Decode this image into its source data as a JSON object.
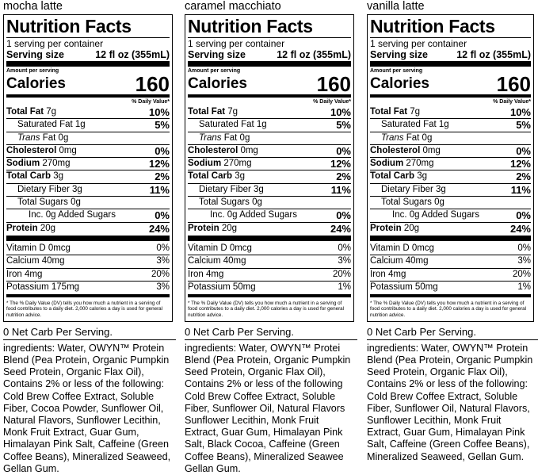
{
  "labels": [
    {
      "flavor": "mocha latte",
      "title": "Nutrition Facts",
      "servings": "1 serving per container",
      "serving_size_label": "Serving size",
      "serving_size_value": "12 fl oz (355mL)",
      "amount_per_serving": "Amount per serving",
      "calories_label": "Calories",
      "calories_value": "160",
      "dv_header": "% Daily Value*",
      "nutrients": [
        {
          "name": "Total Fat",
          "amount": "7g",
          "pct": "10%"
        },
        {
          "name": "Saturated Fat",
          "amount": "1g",
          "pct": "5%"
        },
        {
          "name": "Trans",
          "amount": "Fat 0g",
          "pct": ""
        },
        {
          "name": "Cholesterol",
          "amount": "0mg",
          "pct": "0%"
        },
        {
          "name": "Sodium",
          "amount": "270mg",
          "pct": "12%"
        },
        {
          "name": "Total Carb",
          "amount": "3g",
          "pct": "2%"
        },
        {
          "name": "Dietary Fiber",
          "amount": "3g",
          "pct": "11%"
        },
        {
          "name": "Total Sugars",
          "amount": "0g",
          "pct": ""
        },
        {
          "name": "Inc. 0g Added Sugars",
          "amount": "",
          "pct": "0%"
        },
        {
          "name": "Protein",
          "amount": "20g",
          "pct": "24%"
        }
      ],
      "vitamins": [
        {
          "name": "Vitamin D",
          "amount": "0mcg",
          "pct": "0%"
        },
        {
          "name": "Calcium",
          "amount": "40mg",
          "pct": "3%"
        },
        {
          "name": "Iron",
          "amount": "4mg",
          "pct": "20%"
        },
        {
          "name": "Potassium",
          "amount": "175mg",
          "pct": "3%"
        }
      ],
      "footnote": "* The % Daily Value (DV) tells you how much a nutrient in a serving of food contributes to a daily diet. 2,000 calories a day is used for general nutrition advice.",
      "net_carb": "0 Net Carb Per Serving.",
      "ingredients": "ingredients: Water, OWYN™ Protein\nBlend (Pea Protein, Organic Pumpkin\nSeed Protein, Organic Flax Oil),\nContains 2% or less of the following:\nCold Brew Coffee Extract, Soluble\nFiber, Cocoa Powder, Sunflower Oil,\nNatural Flavors, Sunflower Lecithin,\nMonk Fruit Extract, Guar Gum,\nHimalayan Pink Salt, Caffeine (Green\nCoffee Beans), Mineralized Seaweed,\nGellan Gum."
    },
    {
      "flavor": "caramel macchiato",
      "title": "Nutrition Facts",
      "servings": "1 serving per container",
      "serving_size_label": "Serving size",
      "serving_size_value": "12 fl oz (355mL)",
      "amount_per_serving": "Amount per serving",
      "calories_label": "Calories",
      "calories_value": "160",
      "dv_header": "% Daily Value*",
      "nutrients": [
        {
          "name": "Total Fat",
          "amount": "7g",
          "pct": "10%"
        },
        {
          "name": "Saturated Fat",
          "amount": "1g",
          "pct": "5%"
        },
        {
          "name": "Trans",
          "amount": "Fat 0g",
          "pct": ""
        },
        {
          "name": "Cholesterol",
          "amount": "0mg",
          "pct": "0%"
        },
        {
          "name": "Sodium",
          "amount": "270mg",
          "pct": "12%"
        },
        {
          "name": "Total Carb",
          "amount": "3g",
          "pct": "2%"
        },
        {
          "name": "Dietary Fiber",
          "amount": "3g",
          "pct": "11%"
        },
        {
          "name": "Total Sugars",
          "amount": "0g",
          "pct": ""
        },
        {
          "name": "Inc. 0g Added Sugars",
          "amount": "",
          "pct": "0%"
        },
        {
          "name": "Protein",
          "amount": "20g",
          "pct": "24%"
        }
      ],
      "vitamins": [
        {
          "name": "Vitamin D",
          "amount": "0mcg",
          "pct": "0%"
        },
        {
          "name": "Calcium",
          "amount": "40mg",
          "pct": "3%"
        },
        {
          "name": "Iron",
          "amount": "4mg",
          "pct": "20%"
        },
        {
          "name": "Potassium",
          "amount": "50mg",
          "pct": "1%"
        }
      ],
      "footnote": "* The % Daily Value (DV) tells you how much a nutrient in a serving of food contributes to a daily diet. 2,000 calories a day is used for general nutrition advice.",
      "net_carb": "0 Net Carb Per Serving.",
      "ingredients": "ingredients: Water, OWYN™ Protei\nBlend (Pea Protein, Organic Pumpkin\nSeed Protein, Organic Flax Oil),\nContains 2% or less of the following\nCold Brew Coffee Extract, Soluble\nFiber, Sunflower Oil, Natural Flavors\nSunflower Lecithin, Monk Fruit\nExtract, Guar Gum, Himalayan Pink\nSalt, Black Cocoa, Caffeine (Green\nCoffee Beans), Mineralized Seawee\nGellan Gum."
    },
    {
      "flavor": "vanilla latte",
      "title": "Nutrition Facts",
      "servings": "1 serving per container",
      "serving_size_label": "Serving size",
      "serving_size_value": "12 fl oz (355mL)",
      "amount_per_serving": "Amount per serving",
      "calories_label": "Calories",
      "calories_value": "160",
      "dv_header": "% Daily Value*",
      "nutrients": [
        {
          "name": "Total Fat",
          "amount": "7g",
          "pct": "10%"
        },
        {
          "name": "Saturated Fat",
          "amount": "1g",
          "pct": "5%"
        },
        {
          "name": "Trans",
          "amount": "Fat 0g",
          "pct": ""
        },
        {
          "name": "Cholesterol",
          "amount": "0mg",
          "pct": "0%"
        },
        {
          "name": "Sodium",
          "amount": "270mg",
          "pct": "12%"
        },
        {
          "name": "Total Carb",
          "amount": "3g",
          "pct": "2%"
        },
        {
          "name": "Dietary Fiber",
          "amount": "3g",
          "pct": "11%"
        },
        {
          "name": "Total Sugars",
          "amount": "0g",
          "pct": ""
        },
        {
          "name": "Inc. 0g Added Sugars",
          "amount": "",
          "pct": "0%"
        },
        {
          "name": "Protein",
          "amount": "20g",
          "pct": "24%"
        }
      ],
      "vitamins": [
        {
          "name": "Vitamin D",
          "amount": "0mcg",
          "pct": "0%"
        },
        {
          "name": "Calcium",
          "amount": "40mg",
          "pct": "3%"
        },
        {
          "name": "Iron",
          "amount": "4mg",
          "pct": "20%"
        },
        {
          "name": "Potassium",
          "amount": "50mg",
          "pct": "1%"
        }
      ],
      "footnote": "* The % Daily Value (DV) tells you how much a nutrient in a serving of food contributes to a daily diet. 2,000 calories a day is used for general nutrition advice.",
      "net_carb": "0 Net Carb Per Serving.",
      "ingredients": "ingredients: Water, OWYN™ Protein\nBlend (Pea Protein, Organic Pumpkin\nSeed Protein, Organic Flax Oil),\nContains 2% or less of the following:\nCold Brew Coffee Extract, Soluble\nFiber, Sunflower Oil, Natural Flavors,\nSunflower Lecithin, Monk Fruit\nExtract, Guar Gum, Himalayan Pink\nSalt, Caffeine (Green Coffee Beans),\nMineralized Seaweed, Gellan Gum."
    }
  ]
}
